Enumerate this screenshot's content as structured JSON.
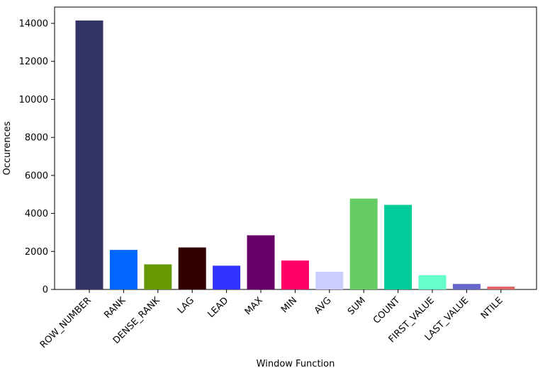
{
  "chart_data": {
    "type": "bar",
    "title": "",
    "xlabel": "Window Function",
    "ylabel": "Occurences",
    "categories": [
      "ROW_NUMBER",
      "RANK",
      "DENSE_RANK",
      "LAG",
      "LEAD",
      "MAX",
      "MIN",
      "AVG",
      "SUM",
      "COUNT",
      "FIRST_VALUE",
      "LAST_VALUE",
      "NTILE"
    ],
    "values": [
      14150,
      2080,
      1320,
      2210,
      1250,
      2850,
      1520,
      930,
      4780,
      4450,
      750,
      290,
      150
    ],
    "colors": [
      "#333366",
      "#0066ff",
      "#669900",
      "#330000",
      "#3333ff",
      "#660066",
      "#ff0066",
      "#ccccff",
      "#66cc66",
      "#00cc99",
      "#66ffcc",
      "#6666cc",
      "#e06666"
    ],
    "ylim": [
      0,
      14857
    ],
    "yticks": [
      0,
      2000,
      4000,
      6000,
      8000,
      10000,
      12000,
      14000
    ],
    "grid": false,
    "legend": "none"
  }
}
